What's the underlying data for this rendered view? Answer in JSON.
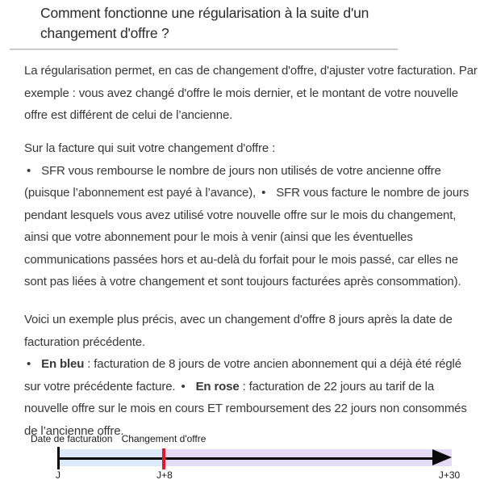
{
  "page": {
    "title": "Comment fonctionne une régularisation à la suite d'un changement d'offre ?"
  },
  "article": {
    "bullet_char": "•",
    "intro": "La régularisation permet, en cas de changement d'offre, d'ajuster votre facturation. Par exemple : vous avez changé d'offre le mois dernier, et le montant de votre nouvelle offre est différent de celui de l’ancienne.",
    "invoice_section": {
      "lead": "Sur la facture qui suit votre changement d'offre :",
      "bullets": [
        "SFR vous rembourse le nombre de jours non utilisés de votre ancienne offre (puisque l’abonnement est payé à l’avance),",
        "SFR vous facture le nombre de jours pendant lesquels vous avez utilisé votre nouvelle offre sur le mois du changement, ainsi que votre abonnement pour le mois à venir (ainsi que les éventuelles communications passées hors et au-delà du forfait pour le mois passé, car elles ne sont pas liées à votre changement et sont toujours facturées après consommation)."
      ]
    },
    "example_section": {
      "lead": "Voici un exemple plus précis, avec un changement d'offre 8 jours après la date de facturation précédente.",
      "bullets": [
        {
          "label": "En bleu",
          "text": " : facturation de 8 jours de votre ancien abonnement qui a déjà été réglé sur votre précédente facture."
        },
        {
          "label": "En rose",
          "text": " : facturation de 22 jours au tarif de la nouvelle offre sur le mois en cours ET remboursement des 22 jours non consommés de l’ancienne offre."
        }
      ]
    }
  },
  "timeline": {
    "top_labels": {
      "billing_date": "Date de facturation",
      "offer_change": "Changement d'offre"
    },
    "axis_labels": {
      "start": "J",
      "change": "J+8",
      "end": "J+30"
    },
    "colors": {
      "old_offer_blue": "#dbe9f9",
      "new_offer_rose": "#e6dbf6",
      "change_marker_red": "#e11a23",
      "axis_black": "#0a0a0a"
    }
  }
}
